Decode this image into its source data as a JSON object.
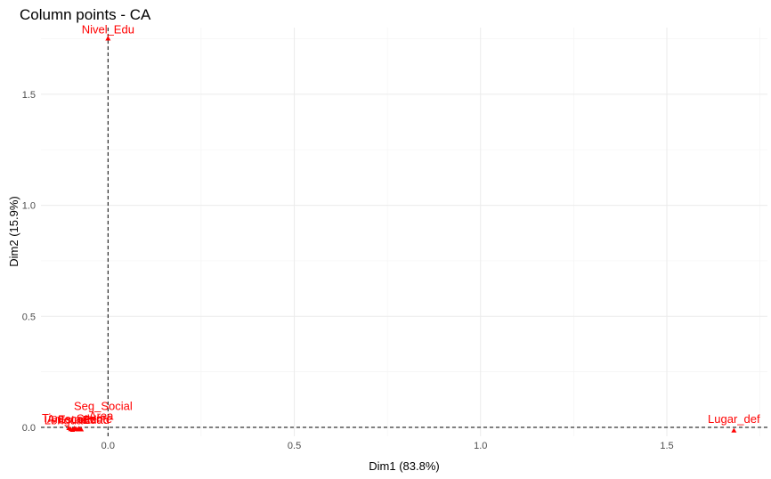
{
  "chart_data": {
    "type": "scatter",
    "title": "Column points - CA",
    "xlabel": "Dim1 (83.8%)",
    "ylabel": "Dim2 (15.9%)",
    "xlim": [
      -0.18,
      1.77
    ],
    "ylim": [
      -0.04,
      1.8
    ],
    "xticks": [
      0.0,
      0.5,
      1.0,
      1.5
    ],
    "yticks": [
      0.0,
      0.5,
      1.0,
      1.5
    ],
    "xtick_labels": [
      "0.0",
      "0.5",
      "1.0",
      "1.5"
    ],
    "ytick_labels": [
      "0.0",
      "0.5",
      "1.0",
      "1.5"
    ],
    "grid": true,
    "reference_lines": {
      "x": 0,
      "y": 0
    },
    "point_color": "#ff0000",
    "points": [
      {
        "label": "Nivel_Edu",
        "x": 0.0,
        "y": 1.75
      },
      {
        "label": "Lugar_def",
        "x": 1.68,
        "y": -0.015
      },
      {
        "label": "Seg_Social",
        "x": -0.08,
        "y": -0.01
      },
      {
        "label": "Area",
        "x": -0.09,
        "y": -0.005
      },
      {
        "label": "Edad",
        "x": -0.085,
        "y": -0.008
      },
      {
        "label": "Sexo",
        "x": -0.078,
        "y": -0.006
      },
      {
        "label": "Estado",
        "x": -0.072,
        "y": -0.01
      },
      {
        "label": "Antecedente",
        "x": -0.095,
        "y": -0.012
      },
      {
        "label": "Lengua",
        "x": -0.1,
        "y": -0.009
      },
      {
        "label": "Tipo",
        "x": -0.105,
        "y": -0.004
      }
    ]
  }
}
